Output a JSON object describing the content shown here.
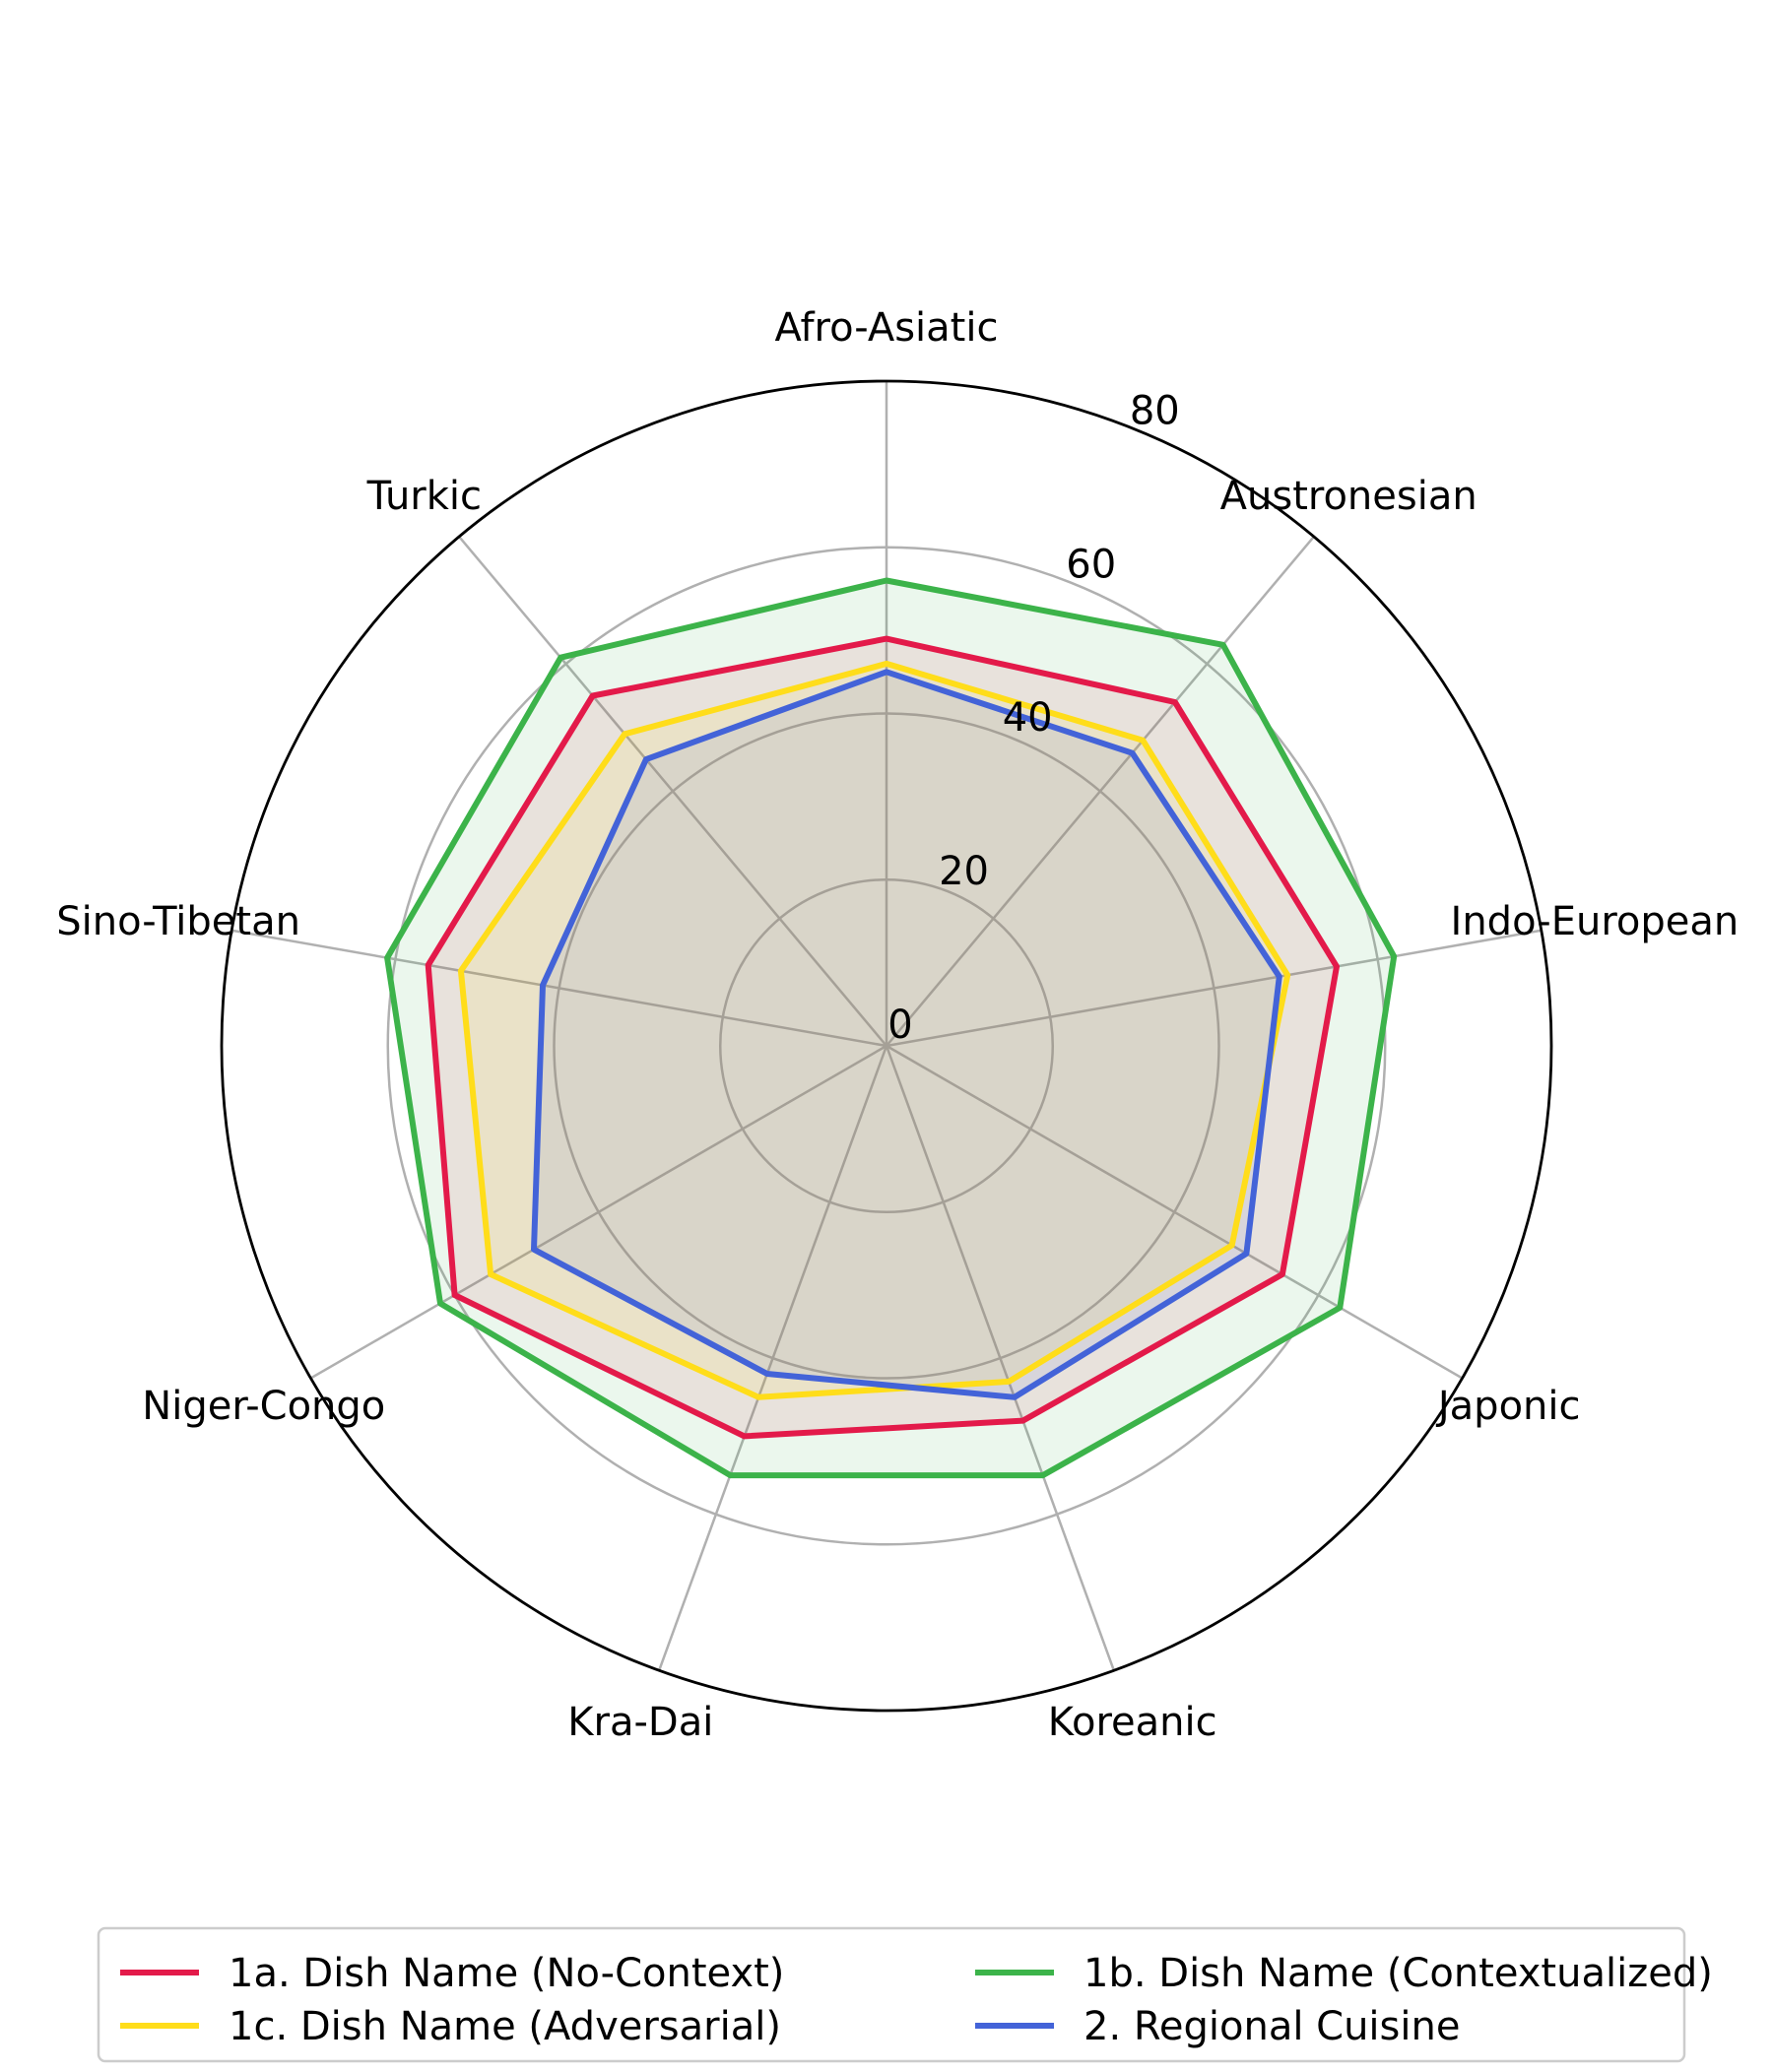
{
  "chart_data": {
    "type": "radar",
    "title": "",
    "categories": [
      "Afro-Asiatic",
      "Austronesian",
      "Indo-European",
      "Japonic",
      "Koreanic",
      "Kra-Dai",
      "Niger-Congo",
      "Sino-Tibetan",
      "Turkic"
    ],
    "rlim": [
      0,
      80
    ],
    "rticks": [
      "0",
      "20",
      "40",
      "60",
      "80"
    ],
    "rtick_values": [
      0,
      20,
      40,
      60,
      80
    ],
    "grid": true,
    "legend_location": "bottom",
    "series": [
      {
        "name": "1a. Dish Name (No-Context)",
        "color": "#E31A4A",
        "values": [
          49,
          54,
          55,
          55,
          48,
          50,
          60,
          56,
          55
        ]
      },
      {
        "name": "1b. Dish Name (Contextualized)",
        "color": "#3CB34A",
        "values": [
          56,
          63,
          62,
          63,
          55,
          55,
          62,
          61,
          61
        ]
      },
      {
        "name": "1c. Dish Name (Adversarial)",
        "color": "#FFDD1A",
        "values": [
          46,
          48,
          49,
          48,
          43,
          45,
          55,
          52,
          49
        ]
      },
      {
        "name": "2. Regional Cuisine",
        "color": "#4363D8",
        "values": [
          45,
          46,
          48,
          50,
          45,
          42,
          49,
          42,
          45
        ]
      }
    ]
  }
}
